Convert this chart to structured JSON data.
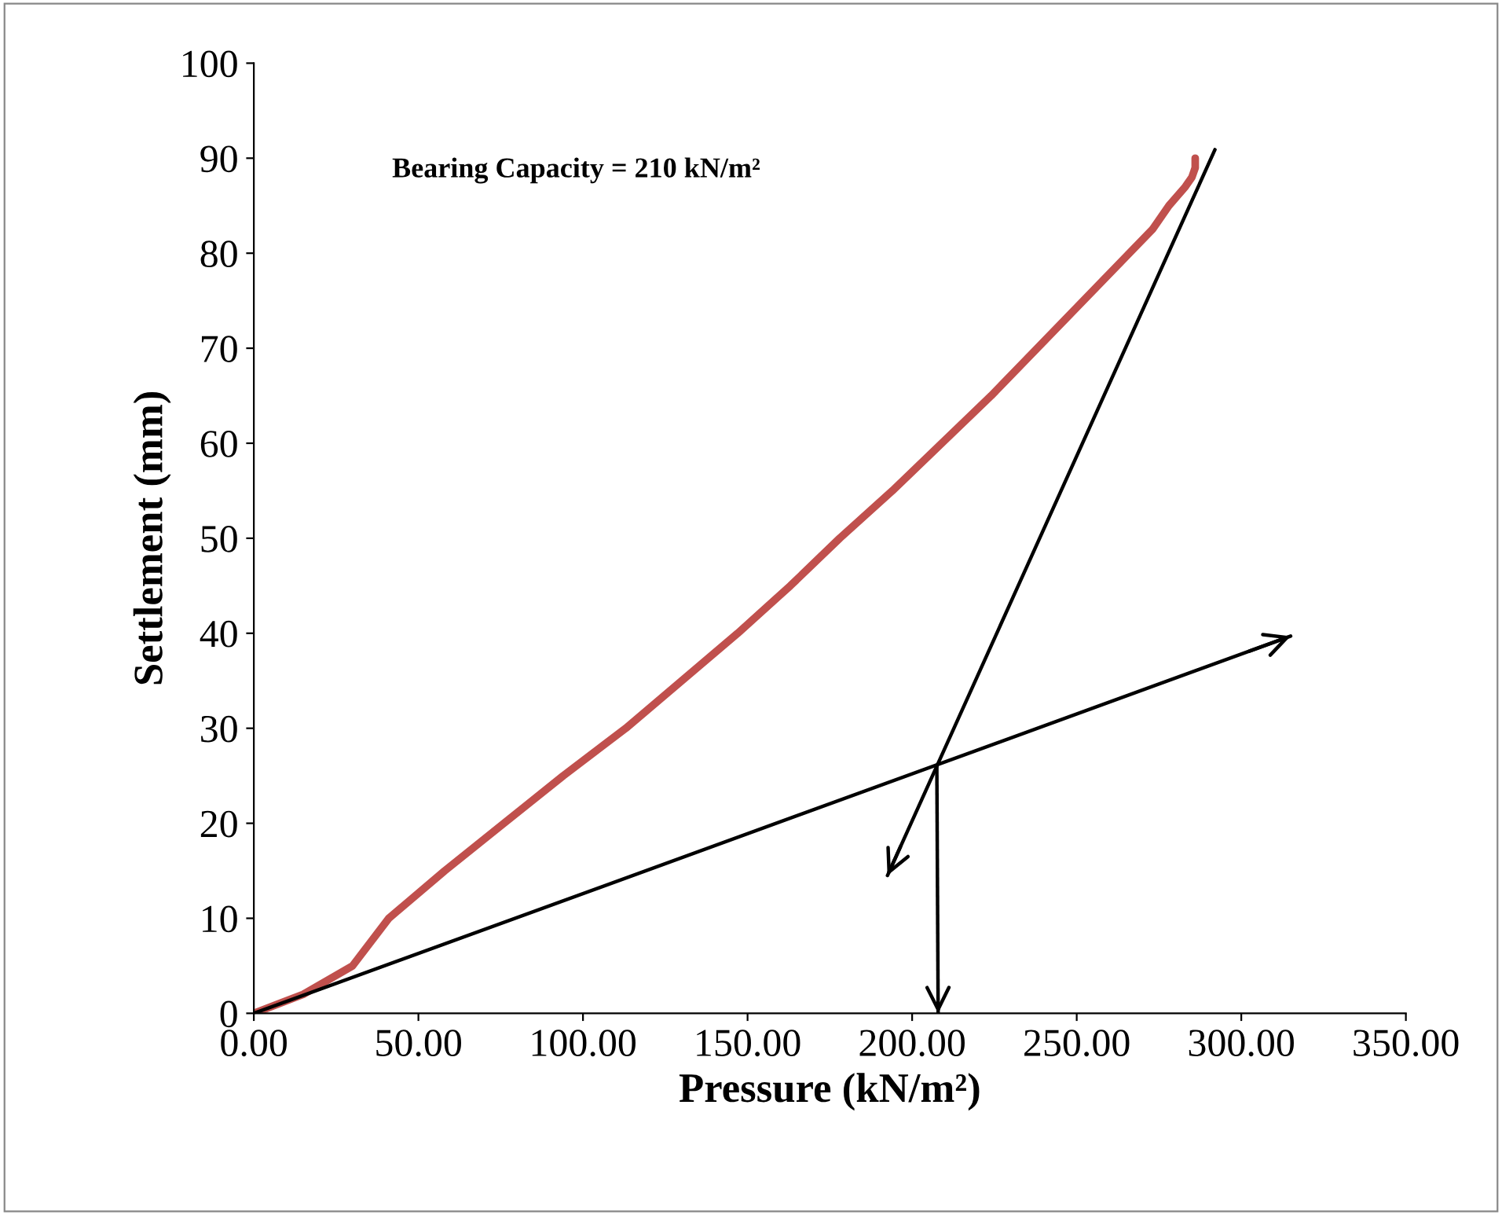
{
  "chart_data": {
    "type": "line",
    "xlabel": "Pressure (kN/m²)",
    "ylabel": "Settlement (mm)",
    "annotations": [
      "Bearing Capacity = 210 kN/m²"
    ],
    "series": [
      {
        "color": "#c0504d",
        "x": [
          0,
          15,
          30,
          41,
          58,
          76,
          94,
          113,
          130,
          147,
          163,
          178,
          194,
          209,
          224,
          238,
          252,
          266,
          273,
          278,
          283,
          285,
          286,
          286
        ],
        "values": [
          0,
          2,
          5,
          10,
          15,
          20,
          25,
          30,
          35,
          40,
          45,
          50,
          55,
          60,
          65,
          70,
          75,
          80,
          82.5,
          85,
          87,
          88,
          89,
          90
        ]
      },
      {
        "color": "#000000",
        "x": [
          0,
          315
        ],
        "values": [
          0,
          39.7
        ]
      },
      {
        "color": "#000000",
        "x": [
          292,
          192.5
        ],
        "values": [
          90.9,
          14.5
        ]
      },
      {
        "color": "#000000",
        "x": [
          207.5,
          207.9
        ],
        "values": [
          26.1,
          0
        ]
      }
    ],
    "xlim": [
      0,
      350
    ],
    "ylim": [
      0,
      100
    ],
    "xticks": [
      {
        "value": 0,
        "label": "0.00"
      },
      {
        "value": 50,
        "label": "50.00"
      },
      {
        "value": 100,
        "label": "100.00"
      },
      {
        "value": 150,
        "label": "150.00"
      },
      {
        "value": 200,
        "label": "200.00"
      },
      {
        "value": 250,
        "label": "250.00"
      },
      {
        "value": 300,
        "label": "300.00"
      },
      {
        "value": 350,
        "label": "350.00"
      }
    ],
    "yticks": [
      0,
      10,
      20,
      30,
      40,
      50,
      60,
      70,
      80,
      90,
      100
    ],
    "grid": false,
    "legend": false
  }
}
